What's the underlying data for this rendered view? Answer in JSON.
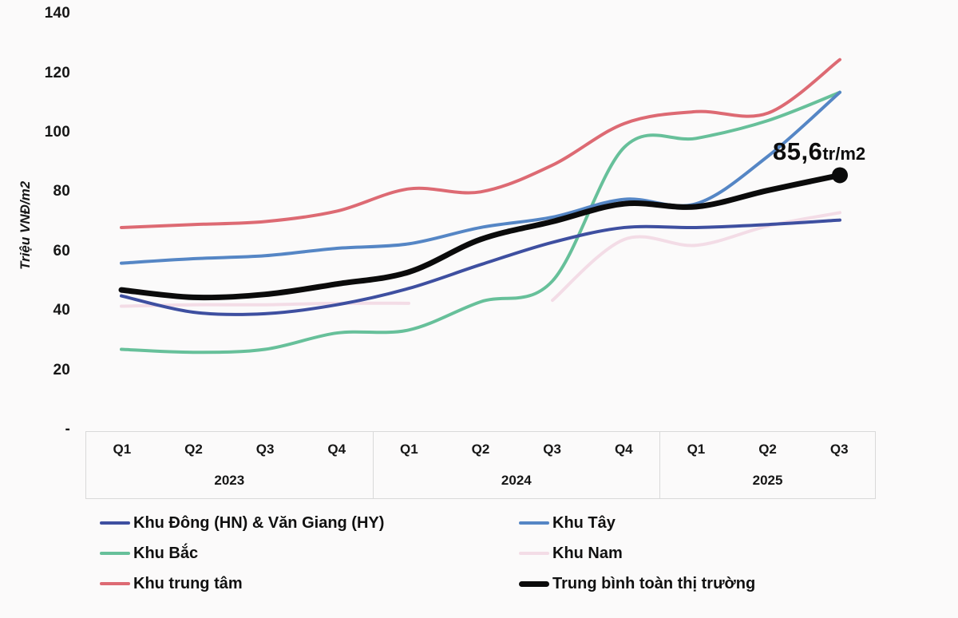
{
  "y_axis": {
    "title": "Triệu VNĐ/m2",
    "ticks": [
      "140",
      "120",
      "100",
      "80",
      "60",
      "40",
      "20",
      "-"
    ]
  },
  "x_axis": {
    "years": [
      "2023",
      "2024",
      "2025"
    ],
    "quarters": [
      [
        "Q1",
        "Q2",
        "Q3",
        "Q4"
      ],
      [
        "Q1",
        "Q2",
        "Q3",
        "Q4"
      ],
      [
        "Q1",
        "Q2",
        "Q3"
      ]
    ]
  },
  "annotation": {
    "value": "85,6",
    "unit": "tr/m2"
  },
  "chart_data": {
    "type": "line",
    "title": "",
    "xlabel": "",
    "ylabel": "Triệu VNĐ/m2",
    "ylim": [
      0,
      140
    ],
    "y_ticks": [
      0,
      20,
      40,
      60,
      80,
      100,
      120,
      140
    ],
    "grid": false,
    "legend_position": "bottom",
    "categories": [
      "Q1 2023",
      "Q2 2023",
      "Q3 2023",
      "Q4 2023",
      "Q1 2024",
      "Q2 2024",
      "Q3 2024",
      "Q4 2024",
      "Q1 2025",
      "Q2 2025",
      "Q3 2025"
    ],
    "series": [
      {
        "name": "Khu Đông (HN) & Văn Giang (HY)",
        "color": "#3e4fa0",
        "stroke_width": 4,
        "values": [
          45,
          39.5,
          39,
          42,
          47.5,
          55.5,
          63,
          68,
          68,
          69,
          70.5
        ]
      },
      {
        "name": "Khu Tây",
        "color": "#5586c5",
        "stroke_width": 4,
        "values": [
          56,
          57.5,
          58.5,
          61,
          62.5,
          68,
          71.5,
          77.5,
          76,
          92,
          113.5
        ]
      },
      {
        "name": "Khu Bắc",
        "color": "#67c09a",
        "stroke_width": 4,
        "values": [
          27,
          26,
          27,
          32.5,
          33.5,
          43,
          50,
          95,
          98,
          104,
          113.5
        ]
      },
      {
        "name": "Khu Nam",
        "color": "#f3dce6",
        "stroke_width": 4,
        "values": [
          41.5,
          42,
          42,
          42.5,
          42.5,
          null,
          43.5,
          64,
          62,
          68.5,
          73
        ]
      },
      {
        "name": "Khu trung tâm",
        "color": "#dd6a73",
        "stroke_width": 4,
        "values": [
          68,
          69,
          70,
          73.5,
          81,
          80,
          89,
          103,
          107,
          106.5,
          124.5
        ]
      },
      {
        "name": "Trung bình toàn thị trường",
        "color": "#0b0b0b",
        "stroke_width": 7,
        "end_dot": true,
        "values": [
          47,
          44.5,
          45.5,
          49,
          53,
          64,
          70,
          76,
          75,
          80.5,
          85.6
        ]
      }
    ],
    "annotation": {
      "text": "85,6tr/m2",
      "series": "Trung bình toàn thị trường",
      "at": "Q3 2025",
      "value": 85.6
    }
  }
}
